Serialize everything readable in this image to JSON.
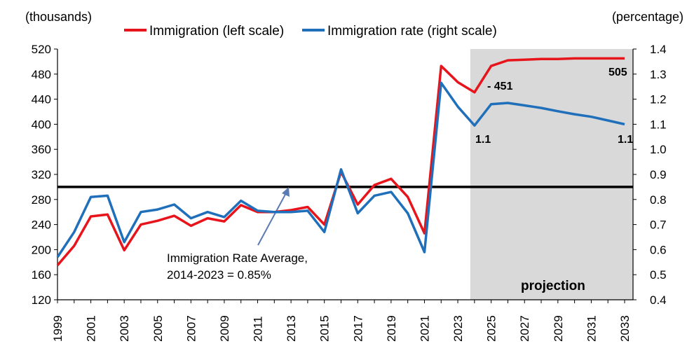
{
  "chart_data": {
    "type": "line",
    "title": "",
    "left_axis_label": "(thousands)",
    "right_axis_label": "(percentage)",
    "left_ylim": [
      120,
      520
    ],
    "left_ticks": [
      120,
      160,
      200,
      240,
      280,
      320,
      360,
      400,
      440,
      480,
      520
    ],
    "right_ylim": [
      0.4,
      1.4
    ],
    "right_ticks": [
      "0.4",
      "0.5",
      "0.6",
      "0.7",
      "0.8",
      "0.9",
      "1.0",
      "1.1",
      "1.2",
      "1.3",
      "1.4"
    ],
    "x_tick_labels": [
      "1999",
      "2001",
      "2003",
      "2005",
      "2007",
      "2009",
      "2011",
      "2013",
      "2015",
      "2017",
      "2019",
      "2021",
      "2023",
      "2025",
      "2027",
      "2029",
      "2031",
      "2033"
    ],
    "x": [
      1999,
      2000,
      2001,
      2002,
      2003,
      2004,
      2005,
      2006,
      2007,
      2008,
      2009,
      2010,
      2011,
      2012,
      2013,
      2014,
      2015,
      2016,
      2017,
      2018,
      2019,
      2020,
      2021,
      2022,
      2023,
      2024,
      2025,
      2026,
      2027,
      2028,
      2029,
      2030,
      2031,
      2032,
      2033
    ],
    "series": [
      {
        "name": "Immigration (left scale)",
        "color": "#e8141c",
        "axis": "left",
        "values": [
          175,
          206,
          253,
          256,
          199,
          240,
          246,
          254,
          238,
          250,
          245,
          271,
          260,
          260,
          263,
          268,
          240,
          324,
          272,
          303,
          313,
          284,
          226,
          493,
          467,
          451,
          493,
          502,
          503,
          504,
          504,
          505,
          505,
          505,
          505
        ]
      },
      {
        "name": "Immigration rate (right scale)",
        "color": "#1f6fbb",
        "axis": "right",
        "values": [
          0.57,
          0.67,
          0.81,
          0.815,
          0.63,
          0.75,
          0.76,
          0.78,
          0.725,
          0.75,
          0.73,
          0.795,
          0.755,
          0.75,
          0.75,
          0.755,
          0.67,
          0.92,
          0.745,
          0.815,
          0.83,
          0.745,
          0.59,
          1.265,
          1.17,
          1.095,
          1.18,
          1.185,
          1.175,
          1.165,
          1.152,
          1.14,
          1.13,
          1.115,
          1.1
        ]
      }
    ],
    "reference_line": {
      "value": 300,
      "axis": "left",
      "color": "#000000"
    },
    "annotation": {
      "line1": "Immigration Rate Average,",
      "line2": "2014-2023 = 0.85%"
    },
    "projection": {
      "label": "projection",
      "from_year": 2024,
      "to_year": 2033.5,
      "fill": "#d9d9d9"
    },
    "data_labels": [
      {
        "text": "451"
      },
      {
        "text": "505"
      },
      {
        "text": "1.1"
      },
      {
        "text": "1.1"
      }
    ],
    "legend": "top"
  }
}
